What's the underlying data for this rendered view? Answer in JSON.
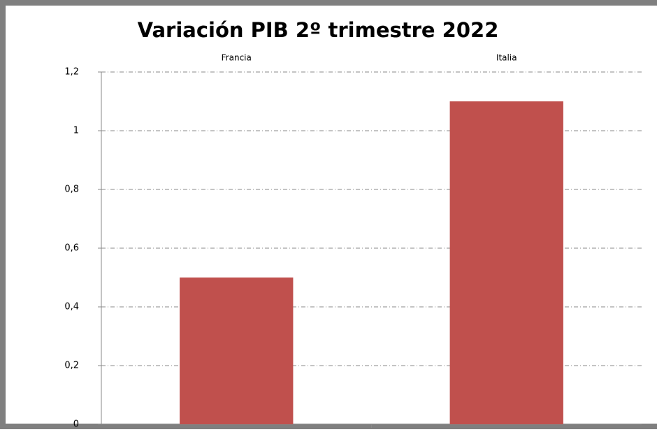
{
  "chart_data": {
    "type": "bar",
    "title": "Variación PIB 2º trimestre 2022",
    "categories": [
      "Francia",
      "Italia"
    ],
    "values": [
      0.5,
      1.1
    ],
    "color": "#c0504d",
    "ylim": [
      0,
      1.2
    ],
    "yticks": [
      0,
      {
        "value": 0.2,
        "label": "0,2"
      },
      {
        "value": 0.4,
        "label": "0,4"
      },
      {
        "value": 0.6,
        "label": "0,6"
      },
      {
        "value": 0.8,
        "label": "0,8"
      },
      1,
      {
        "value": 1.2,
        "label": "1,2"
      }
    ],
    "grid": true
  }
}
